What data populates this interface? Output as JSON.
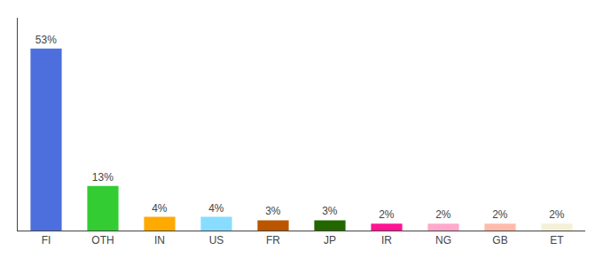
{
  "chart_data": {
    "type": "bar",
    "categories": [
      "FI",
      "OTH",
      "IN",
      "US",
      "FR",
      "JP",
      "IR",
      "NG",
      "GB",
      "ET"
    ],
    "values": [
      53,
      13,
      4,
      4,
      3,
      3,
      2,
      2,
      2,
      2
    ],
    "value_labels": [
      "53%",
      "13%",
      "4%",
      "4%",
      "3%",
      "3%",
      "2%",
      "2%",
      "2%",
      "2%"
    ],
    "colors": [
      "#4d6fde",
      "#33cc33",
      "#ffaa00",
      "#88ddff",
      "#bb5500",
      "#226600",
      "#ff1493",
      "#ffaacc",
      "#ffbbaa",
      "#f5f0d8"
    ],
    "ylim": [
      0,
      62
    ],
    "data_labels": true,
    "tick_labels": "x",
    "grid": false
  }
}
